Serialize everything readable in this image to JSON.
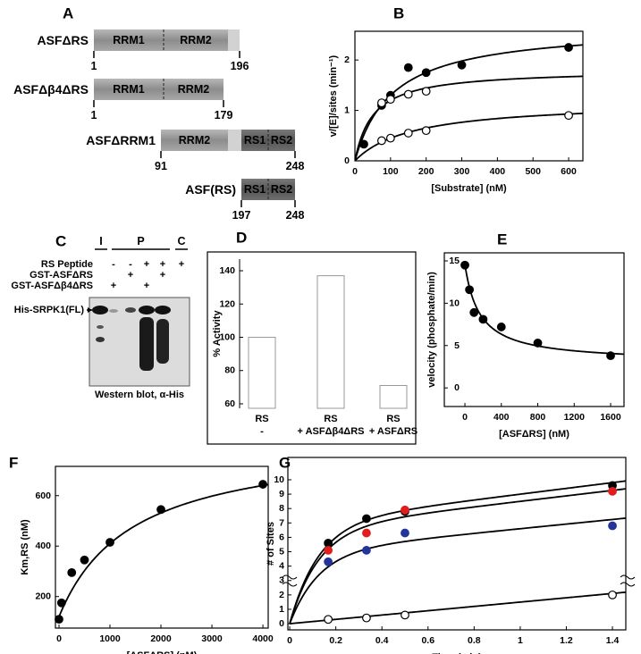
{
  "panel_a": {
    "label": "A",
    "constructs": [
      {
        "name": "ASFΔRS",
        "domains": [
          "RRM1",
          "RRM2"
        ],
        "start": 1,
        "end": 196
      },
      {
        "name": "ASFΔβ4ΔRS",
        "domains": [
          "RRM1",
          "RRM2"
        ],
        "start": 1,
        "end": 179
      },
      {
        "name": "ASFΔRRM1",
        "domains": [
          "RRM2",
          "RS1",
          "RS2"
        ],
        "start": 91,
        "end": 248
      },
      {
        "name": "ASF(RS)",
        "domains": [
          "RS1",
          "RS2"
        ],
        "start": 197,
        "end": 248
      }
    ]
  },
  "panel_c": {
    "label": "C",
    "groups": [
      "I",
      "P",
      "C"
    ],
    "rows": [
      {
        "label": "RS Peptide",
        "signs": [
          null,
          "-",
          "-",
          "+",
          "+",
          "+"
        ]
      },
      {
        "label": "GST-ASFΔRS",
        "signs": [
          null,
          null,
          "+",
          null,
          "+",
          null
        ]
      },
      {
        "label": "GST-ASFΔβ4ΔRS",
        "signs": [
          null,
          "+",
          null,
          "+",
          null,
          null
        ]
      }
    ],
    "band_label": "His-SRPK1(FL)",
    "caption": "Western blot, α-His"
  },
  "chart_data": [
    {
      "type": "scatter",
      "panel_label": "B",
      "xlabel": "[Substrate] (nM)",
      "ylabel": "v/[E]/sites (min⁻¹)",
      "xlim": [
        0,
        640
      ],
      "ylim": [
        0,
        2.57
      ],
      "xticks": [
        0,
        100,
        200,
        300,
        400,
        500,
        600
      ],
      "yticks": [
        0,
        1,
        2
      ],
      "series": [
        {
          "color": "#000",
          "fill": "#000",
          "x": [
            25,
            75,
            100,
            150,
            200,
            300,
            600
          ],
          "values": [
            0.33,
            1.1,
            1.3,
            1.85,
            1.75,
            1.9,
            2.25
          ],
          "fit": {
            "vmax": 2.68,
            "km": 106
          }
        },
        {
          "color": "#000",
          "fill": "#fff",
          "x": [
            75,
            100,
            150,
            200
          ],
          "values": [
            1.15,
            1.22,
            1.32,
            1.38
          ],
          "fit": {
            "vmax": 1.81,
            "km": 51
          }
        },
        {
          "color": "#000",
          "fill": "#fff",
          "x": [
            75,
            100,
            150,
            200,
            600
          ],
          "values": [
            0.4,
            0.45,
            0.55,
            0.6,
            0.9
          ],
          "fit": {
            "vmax": 1.18,
            "km": 163
          }
        }
      ]
    },
    {
      "type": "bar",
      "panel_label": "D",
      "ylabel": "% Activity",
      "categories": [
        "RS\n-",
        "RS\n+ ASFΔβ4ΔRS",
        "RS\n+ ASFΔRS"
      ],
      "values": [
        100,
        137,
        71
      ],
      "color": "#999",
      "fill": "#fff",
      "ylim": [
        57.3,
        147
      ],
      "yticks": [
        60,
        80,
        100,
        120,
        140
      ]
    },
    {
      "type": "scatter",
      "panel_label": "E",
      "xlabel": "[ASFΔRS] (nM)",
      "ylabel": "velocity (phosphate/min)",
      "xlim": [
        -226,
        1747
      ],
      "ylim": [
        -2.2,
        15.95
      ],
      "xticks": [
        0,
        400,
        800,
        1200,
        1600
      ],
      "yticks": [
        0,
        5,
        10,
        15
      ],
      "series": [
        {
          "color": "#000",
          "fill": "#000",
          "x": [
            0,
            50,
            100,
            200,
            400,
            800,
            1600
          ],
          "values": [
            14.5,
            11.6,
            8.9,
            8.1,
            7.2,
            5.3,
            3.8
          ],
          "fit": {
            "v0": 14.6,
            "vinf": 3,
            "k": 162
          }
        }
      ]
    },
    {
      "type": "scatter",
      "panel_label": "F",
      "xlabel": "[ASFΔRS] (nM)",
      "ylabel": "Km,RS (nM)",
      "xlim": [
        -70,
        4104
      ],
      "ylim": [
        75,
        716
      ],
      "xticks": [
        0,
        1000,
        2000,
        3000,
        4000
      ],
      "yticks": [
        200,
        400,
        600
      ],
      "series": [
        {
          "color": "#000",
          "fill": "#000",
          "x": [
            0,
            50,
            250,
            500,
            1000,
            2000,
            4000
          ],
          "values": [
            110,
            175,
            295,
            345,
            415,
            545,
            645
          ],
          "fit": {
            "y0": 120,
            "delta": 707,
            "k": 1437
          }
        }
      ]
    },
    {
      "type": "scatter",
      "panel_label": "G",
      "xlabel": "Time (min)",
      "ylabel": "# of Sites",
      "xlim": [
        -0.008,
        1.458
      ],
      "ylim": [
        -0.43,
        11.55
      ],
      "xticks": [
        0,
        0.2,
        0.4,
        0.6,
        0.8,
        1,
        1.2,
        1.4
      ],
      "yticks": [
        0,
        1,
        2,
        3,
        4,
        5,
        6,
        7,
        8,
        9,
        10
      ],
      "series": [
        {
          "color": "#000",
          "fill": "#000",
          "x": [
            0.167,
            0.333,
            0.5,
            1.4
          ],
          "values": [
            5.6,
            7.3,
            7.8,
            9.6
          ],
          "fit": {
            "burst": 7,
            "k": 8,
            "slope": 2
          }
        },
        {
          "color": "#e01e1e",
          "fill": "#e01e1e",
          "x": [
            0.167,
            0.333,
            0.5,
            1.4
          ],
          "values": [
            5.1,
            6.3,
            7.9,
            9.2
          ],
          "fit": {
            "burst": 6.6,
            "k": 8,
            "slope": 1.9
          }
        },
        {
          "color": "#23349a",
          "fill": "#23349a",
          "x": [
            0.167,
            0.333,
            0.5,
            1.4
          ],
          "values": [
            4.3,
            5.1,
            6.3,
            6.8
          ],
          "fit": {
            "burst": 5,
            "k": 8,
            "slope": 1.6
          }
        },
        {
          "color": "#000",
          "fill": "#fff",
          "x": [
            0.167,
            0.333,
            0.5,
            1.4
          ],
          "values": [
            0.3,
            0.4,
            0.6,
            2.0
          ],
          "fit": {
            "burst": 0,
            "k": 8,
            "slope": 1.5
          }
        }
      ]
    }
  ]
}
